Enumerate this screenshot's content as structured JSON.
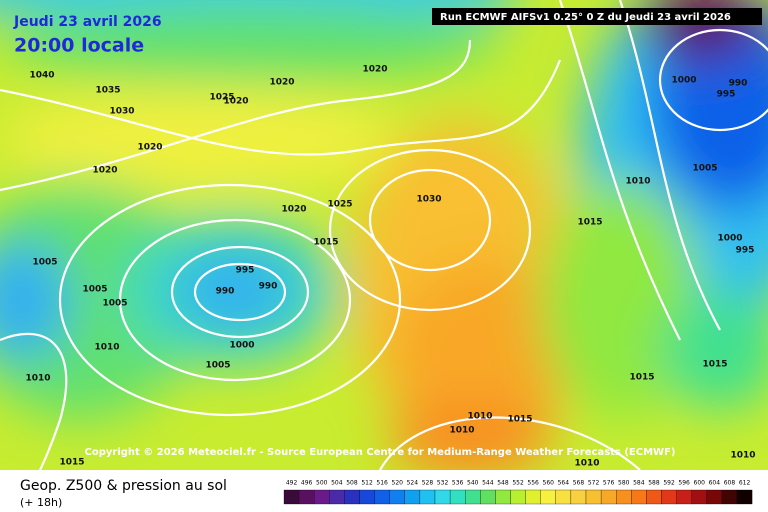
{
  "date_label": "Jeudi 23 avril 2026",
  "time_label": "20:00 locale",
  "run_label": "Run ECMWF AIFSv1 0.25° 0 Z du Jeudi 23 avril 2026",
  "copyright": "Copyright © 2026 Meteociel.fr - Source European Centre for Medium-Range Weather Forecasts (ECMWF)",
  "footer": {
    "title": "Geop. Z500 & pression au sol",
    "subtitle": "(+ 18h)"
  },
  "scale": {
    "labels": [
      "492",
      "496",
      "500",
      "504",
      "508",
      "512",
      "516",
      "520",
      "524",
      "528",
      "532",
      "536",
      "540",
      "544",
      "548",
      "552",
      "556",
      "560",
      "564",
      "568",
      "572",
      "576",
      "580",
      "584",
      "588",
      "592",
      "596",
      "600",
      "604",
      "608",
      "612"
    ],
    "colors": [
      "#3a0a3a",
      "#5a1060",
      "#6a1a8a",
      "#4a2aa8",
      "#2a30c0",
      "#1848d8",
      "#1060e8",
      "#1080f0",
      "#10a0f0",
      "#20c0f0",
      "#30d8e8",
      "#30e0c0",
      "#40e090",
      "#60e060",
      "#90e840",
      "#b8f030",
      "#e0f030",
      "#f8f040",
      "#f8e040",
      "#f8d040",
      "#f8c030",
      "#f8a828",
      "#f89020",
      "#f87818",
      "#f05818",
      "#e03818",
      "#c82018",
      "#a01010",
      "#780808",
      "#400404",
      "#100000"
    ]
  },
  "isobar_labels": [
    "1040",
    "1035",
    "1030",
    "1020",
    "1020",
    "1025",
    "1020",
    "1020",
    "1020",
    "1030",
    "1025",
    "1020",
    "1015",
    "1015",
    "1010",
    "1005",
    "1000",
    "995",
    "1000",
    "990",
    "995",
    "1005",
    "1005",
    "1005",
    "995",
    "990",
    "990",
    "1010",
    "1000",
    "1005",
    "1010",
    "1015",
    "1015",
    "1010",
    "1010",
    "1015",
    "1015",
    "1010",
    "1010"
  ]
}
